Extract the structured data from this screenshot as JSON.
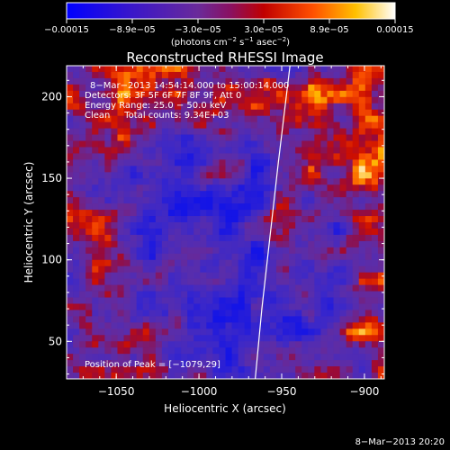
{
  "colorbar": {
    "tick_labels": [
      "−0.00015",
      "−8.9e−05",
      "−3.0e−05",
      "3.0e−05",
      "8.9e−05",
      "0.00015"
    ],
    "unit_parts": [
      "(photons cm",
      "−2",
      " s",
      "−1",
      " asec",
      "−2",
      ")"
    ],
    "range": [
      -0.00015,
      0.00015
    ]
  },
  "info": {
    "time_range": "8−Mar−2013 14:54:14.000 to 15:00:14.000",
    "detectors": "Detectors: 3F 5F 6F 7F 8F 9F, Att 0",
    "energy": "Energy Range: 25.0 − 50.0 keV",
    "clean": "Clean     Total counts: 9.34E+03",
    "peak": "Position of Peak = [−1079,29]"
  },
  "footer": {
    "date": "8−Mar−2013 20:20"
  },
  "chart_data": {
    "type": "heatmap",
    "title": "Reconstructed RHESSI Image",
    "xlabel": "Heliocentric X (arcsec)",
    "ylabel": "Heliocentric Y (arcsec)",
    "xlim": [
      -1080,
      -888
    ],
    "ylim": [
      27,
      219
    ],
    "x_ticks": [
      -1050,
      -1000,
      -950,
      -900
    ],
    "x_tick_labels": [
      "−1050",
      "−1000",
      "−950",
      "−900"
    ],
    "y_ticks": [
      50,
      100,
      150,
      200
    ],
    "y_tick_labels": [
      "50",
      "100",
      "150",
      "200"
    ],
    "colormap": "rhessi blue-purple-red-yellow-white",
    "limb_curve": [
      [
        -966,
        27
      ],
      [
        -962,
        70
      ],
      [
        -957,
        115
      ],
      [
        -952,
        160
      ],
      [
        -945,
        219
      ]
    ],
    "peak_position": [
      -1079,
      29
    ]
  }
}
